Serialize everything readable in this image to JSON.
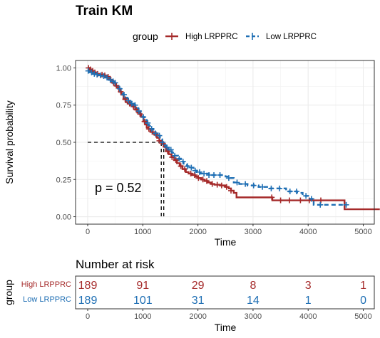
{
  "chart_data": [
    {
      "type": "line",
      "chart": "kaplan-meier",
      "title": "Train KM",
      "xlabel": "Time",
      "ylabel": "Survival probability",
      "xlim": [
        -220,
        5200
      ],
      "ylim": [
        -0.05,
        1.05
      ],
      "x_ticks": [
        0,
        1000,
        2000,
        3000,
        4000,
        5000
      ],
      "y_ticks": [
        {
          "value": 0,
          "label": "0.00"
        },
        {
          "value": 0.25,
          "label": "0.25"
        },
        {
          "value": 0.5,
          "label": "0.50"
        },
        {
          "value": 0.75,
          "label": "0.75"
        },
        {
          "value": 1,
          "label": "1.00"
        }
      ],
      "grid": true,
      "legend": {
        "title": "group",
        "position": "top"
      },
      "annotation": "p = 0.52",
      "median_survival": {
        "y": 0.5,
        "x": [
          1335,
          1380
        ]
      },
      "series": [
        {
          "name": "High LRPPRC",
          "color": "#a52a2a",
          "dash": "solid",
          "steps": [
            [
              0,
              1.0
            ],
            [
              30,
              0.99
            ],
            [
              60,
              0.98
            ],
            [
              100,
              0.97
            ],
            [
              160,
              0.96
            ],
            [
              220,
              0.955
            ],
            [
              280,
              0.95
            ],
            [
              340,
              0.94
            ],
            [
              400,
              0.92
            ],
            [
              450,
              0.9
            ],
            [
              500,
              0.88
            ],
            [
              540,
              0.87
            ],
            [
              570,
              0.84
            ],
            [
              610,
              0.82
            ],
            [
              650,
              0.79
            ],
            [
              690,
              0.77
            ],
            [
              730,
              0.76
            ],
            [
              780,
              0.75
            ],
            [
              820,
              0.74
            ],
            [
              860,
              0.72
            ],
            [
              900,
              0.7
            ],
            [
              940,
              0.69
            ],
            [
              970,
              0.67
            ],
            [
              1010,
              0.64
            ],
            [
              1040,
              0.62
            ],
            [
              1070,
              0.6
            ],
            [
              1100,
              0.59
            ],
            [
              1140,
              0.57
            ],
            [
              1180,
              0.56
            ],
            [
              1220,
              0.55
            ],
            [
              1260,
              0.53
            ],
            [
              1300,
              0.51
            ],
            [
              1335,
              0.49
            ],
            [
              1380,
              0.47
            ],
            [
              1420,
              0.44
            ],
            [
              1470,
              0.42
            ],
            [
              1520,
              0.4
            ],
            [
              1570,
              0.38
            ],
            [
              1620,
              0.36
            ],
            [
              1670,
              0.34
            ],
            [
              1720,
              0.32
            ],
            [
              1780,
              0.3
            ],
            [
              1830,
              0.29
            ],
            [
              1890,
              0.28
            ],
            [
              1950,
              0.27
            ],
            [
              2000,
              0.26
            ],
            [
              2060,
              0.25
            ],
            [
              2120,
              0.24
            ],
            [
              2180,
              0.23
            ],
            [
              2240,
              0.22
            ],
            [
              2300,
              0.215
            ],
            [
              2400,
              0.21
            ],
            [
              2500,
              0.2
            ],
            [
              2560,
              0.19
            ],
            [
              2600,
              0.175
            ],
            [
              2650,
              0.16
            ],
            [
              2700,
              0.13
            ],
            [
              3300,
              0.13
            ],
            [
              3350,
              0.11
            ],
            [
              4600,
              0.11
            ],
            [
              4660,
              0.05
            ],
            [
              5300,
              0.05
            ]
          ],
          "censor_times": [
            15,
            50,
            90,
            130,
            180,
            260,
            310,
            370,
            420,
            470,
            520,
            600,
            680,
            760,
            830,
            880,
            950,
            1030,
            1110,
            1170,
            1240,
            1300,
            1370,
            1450,
            1530,
            1600,
            1690,
            1760,
            1870,
            1940,
            2010,
            2090,
            2160,
            2260,
            2350,
            2430,
            2520,
            2600,
            3340,
            3500,
            3660,
            3860,
            4020,
            4230
          ]
        },
        {
          "name": "Low LRPPRC",
          "color": "#1f6fb4",
          "dash": "dashed",
          "steps": [
            [
              0,
              0.98
            ],
            [
              40,
              0.97
            ],
            [
              90,
              0.96
            ],
            [
              150,
              0.955
            ],
            [
              200,
              0.95
            ],
            [
              260,
              0.945
            ],
            [
              320,
              0.935
            ],
            [
              380,
              0.92
            ],
            [
              430,
              0.91
            ],
            [
              480,
              0.9
            ],
            [
              520,
              0.88
            ],
            [
              560,
              0.86
            ],
            [
              600,
              0.84
            ],
            [
              640,
              0.82
            ],
            [
              680,
              0.8
            ],
            [
              720,
              0.78
            ],
            [
              760,
              0.77
            ],
            [
              800,
              0.76
            ],
            [
              840,
              0.75
            ],
            [
              880,
              0.73
            ],
            [
              920,
              0.71
            ],
            [
              960,
              0.69
            ],
            [
              1000,
              0.67
            ],
            [
              1030,
              0.65
            ],
            [
              1070,
              0.63
            ],
            [
              1110,
              0.61
            ],
            [
              1150,
              0.59
            ],
            [
              1190,
              0.57
            ],
            [
              1230,
              0.56
            ],
            [
              1270,
              0.545
            ],
            [
              1310,
              0.52
            ],
            [
              1350,
              0.5
            ],
            [
              1380,
              0.48
            ],
            [
              1420,
              0.465
            ],
            [
              1470,
              0.45
            ],
            [
              1530,
              0.43
            ],
            [
              1580,
              0.41
            ],
            [
              1640,
              0.39
            ],
            [
              1690,
              0.37
            ],
            [
              1740,
              0.35
            ],
            [
              1800,
              0.34
            ],
            [
              1860,
              0.33
            ],
            [
              1920,
              0.31
            ],
            [
              1980,
              0.3
            ],
            [
              2040,
              0.29
            ],
            [
              2200,
              0.28
            ],
            [
              2500,
              0.27
            ],
            [
              2550,
              0.26
            ],
            [
              2650,
              0.23
            ],
            [
              2750,
              0.22
            ],
            [
              2900,
              0.21
            ],
            [
              3100,
              0.2
            ],
            [
              3300,
              0.19
            ],
            [
              3600,
              0.17
            ],
            [
              3800,
              0.16
            ],
            [
              3900,
              0.14
            ],
            [
              4000,
              0.12
            ],
            [
              4100,
              0.08
            ],
            [
              4700,
              0.08
            ]
          ],
          "censor_times": [
            10,
            70,
            120,
            170,
            230,
            290,
            350,
            410,
            460,
            500,
            580,
            660,
            740,
            800,
            860,
            930,
            1010,
            1090,
            1160,
            1230,
            1300,
            1360,
            1440,
            1510,
            1580,
            1660,
            1730,
            1810,
            1880,
            1950,
            2030,
            2110,
            2200,
            2290,
            2400,
            2560,
            2710,
            2860,
            3010,
            3170,
            3330,
            3480,
            3670,
            3790,
            3960,
            4060,
            4220,
            4690
          ]
        }
      ]
    },
    {
      "type": "table",
      "title": "Number at risk",
      "xlabel": "Time",
      "ylabel": "group",
      "x": [
        0,
        1000,
        2000,
        3000,
        4000,
        5000
      ],
      "rows": [
        {
          "name": "High LRPPRC",
          "color": "#a52a2a",
          "values": [
            189,
            91,
            29,
            8,
            3,
            1
          ]
        },
        {
          "name": "Low LRPPRC",
          "color": "#1f6fb4",
          "values": [
            189,
            101,
            31,
            14,
            1,
            0
          ]
        }
      ]
    }
  ]
}
